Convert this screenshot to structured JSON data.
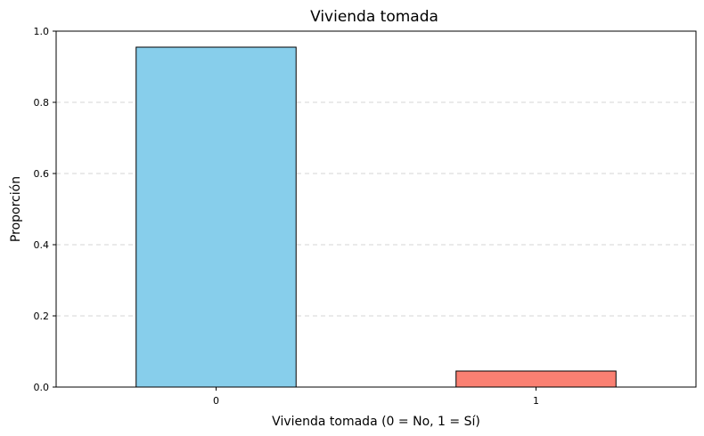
{
  "chart_data": {
    "type": "bar",
    "title": "Vivienda tomada",
    "xlabel": "Vivienda tomada (0 = No, 1 = Sí)",
    "ylabel": "Proporción",
    "categories": [
      "0",
      "1"
    ],
    "values": [
      0.955,
      0.045
    ],
    "colors": [
      "#87ceeb",
      "#fa8072"
    ],
    "ylim": [
      0,
      1.0
    ],
    "yticks": [
      "0.0",
      "0.2",
      "0.4",
      "0.6",
      "0.8",
      "1.0"
    ],
    "grid": "y",
    "legend": "none"
  }
}
